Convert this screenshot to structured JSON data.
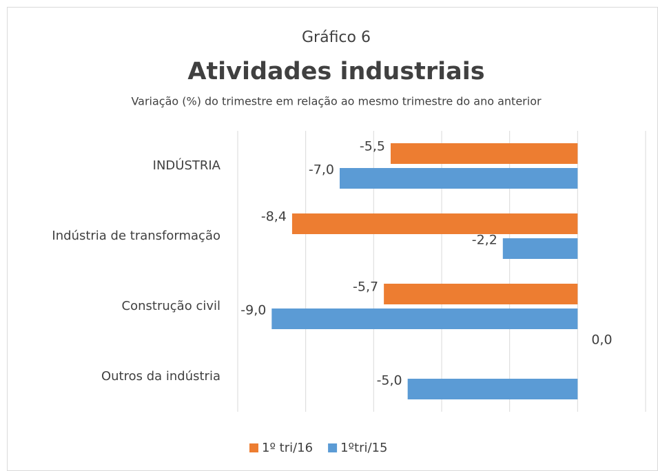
{
  "chart_data": {
    "type": "barh",
    "title": "Atividades industriais",
    "pretitle": "Gráfico 6",
    "subtitle": "Variação (%) do trimestre em relação ao mesmo trimestre do ano anterior",
    "categories": [
      "INDÚSTRIA",
      "Indústria de transformação",
      "Construção civil",
      "Outros da indústria"
    ],
    "series": [
      {
        "name": "1º tri/16",
        "color": "#ED7D31",
        "values": [
          -5.5,
          -8.4,
          -5.7,
          0.0
        ],
        "value_labels": [
          "-5,5",
          "-8,4",
          "-5,7",
          "0,0"
        ]
      },
      {
        "name": "1ºtri/15",
        "color": "#5B9BD5",
        "values": [
          -7.0,
          -2.2,
          -9.0,
          -5.0
        ],
        "value_labels": [
          "-7,0",
          "-2,2",
          "-9,0",
          "-5,0"
        ]
      }
    ],
    "xlim": [
      -10,
      2
    ],
    "xticks": [
      -10,
      -8,
      -6,
      -4,
      -2,
      0,
      2
    ],
    "grid": true,
    "legend": "bottom"
  }
}
